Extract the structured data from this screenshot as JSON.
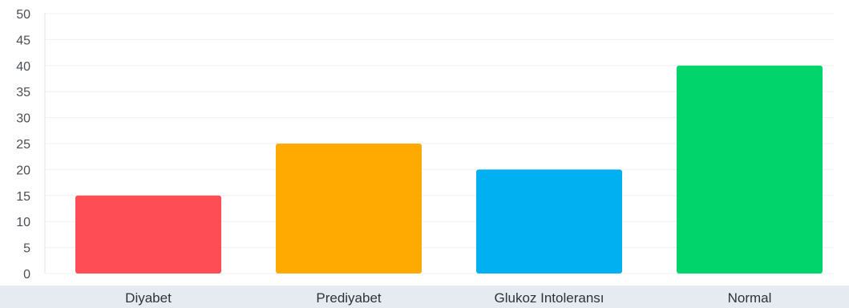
{
  "chart_data": {
    "type": "bar",
    "title": "",
    "xlabel": "",
    "ylabel": "",
    "categories": [
      "Diyabet",
      "Prediyabet",
      "Glukoz Intoleransı",
      "Normal"
    ],
    "values": [
      15,
      25,
      20,
      40
    ],
    "colors": [
      "#ff4d55",
      "#ffaa00",
      "#00b0f0",
      "#00d46a"
    ],
    "ylim": [
      0,
      50
    ],
    "yticks": [
      0,
      5,
      10,
      15,
      20,
      25,
      30,
      35,
      40,
      45,
      50
    ],
    "grid": true,
    "legend": "none"
  }
}
